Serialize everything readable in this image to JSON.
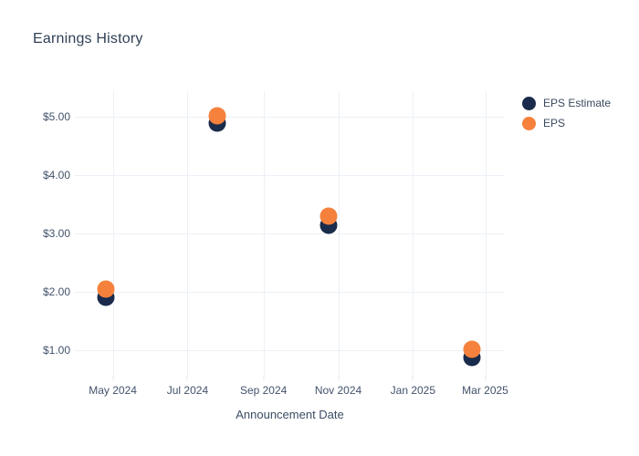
{
  "title": "Earnings History",
  "colors": {
    "eps_estimate": "#1a2b4b",
    "eps": "#f5813c",
    "grid": "#ecf0f6",
    "tick_text": "#42526b",
    "title_text": "#2f4156",
    "background": "#ffffff"
  },
  "chart_data": {
    "type": "scatter",
    "title": "Earnings History",
    "xlabel": "Announcement Date",
    "ylabel": "",
    "grid": true,
    "legend_position": "right",
    "x_axis": {
      "range": [
        "2024-03-31",
        "2025-03-17"
      ],
      "ticks": [
        {
          "date": "2024-05-01",
          "label": "May 2024"
        },
        {
          "date": "2024-07-01",
          "label": "Jul 2024"
        },
        {
          "date": "2024-09-01",
          "label": "Sep 2024"
        },
        {
          "date": "2024-11-01",
          "label": "Nov 2024"
        },
        {
          "date": "2025-01-01",
          "label": "Jan 2025"
        },
        {
          "date": "2025-03-01",
          "label": "Mar 2025"
        }
      ]
    },
    "y_axis": {
      "range": [
        0.56,
        5.44
      ],
      "ticks": [
        {
          "value": 1,
          "label": "$1.00"
        },
        {
          "value": 2,
          "label": "$2.00"
        },
        {
          "value": 3,
          "label": "$3.00"
        },
        {
          "value": 4,
          "label": "$4.00"
        },
        {
          "value": 5,
          "label": "$5.00"
        }
      ]
    },
    "series": [
      {
        "name": "EPS Estimate",
        "color": "#1a2b4b",
        "points": [
          {
            "x": "2024-04-25",
            "y": 1.9
          },
          {
            "x": "2024-07-25",
            "y": 4.89
          },
          {
            "x": "2024-10-24",
            "y": 3.14
          },
          {
            "x": "2025-02-18",
            "y": 0.88
          }
        ]
      },
      {
        "name": "EPS",
        "color": "#f5813c",
        "points": [
          {
            "x": "2024-04-25",
            "y": 2.04
          },
          {
            "x": "2024-07-25",
            "y": 5.01
          },
          {
            "x": "2024-10-24",
            "y": 3.3
          },
          {
            "x": "2025-02-18",
            "y": 1.02
          }
        ]
      }
    ]
  }
}
